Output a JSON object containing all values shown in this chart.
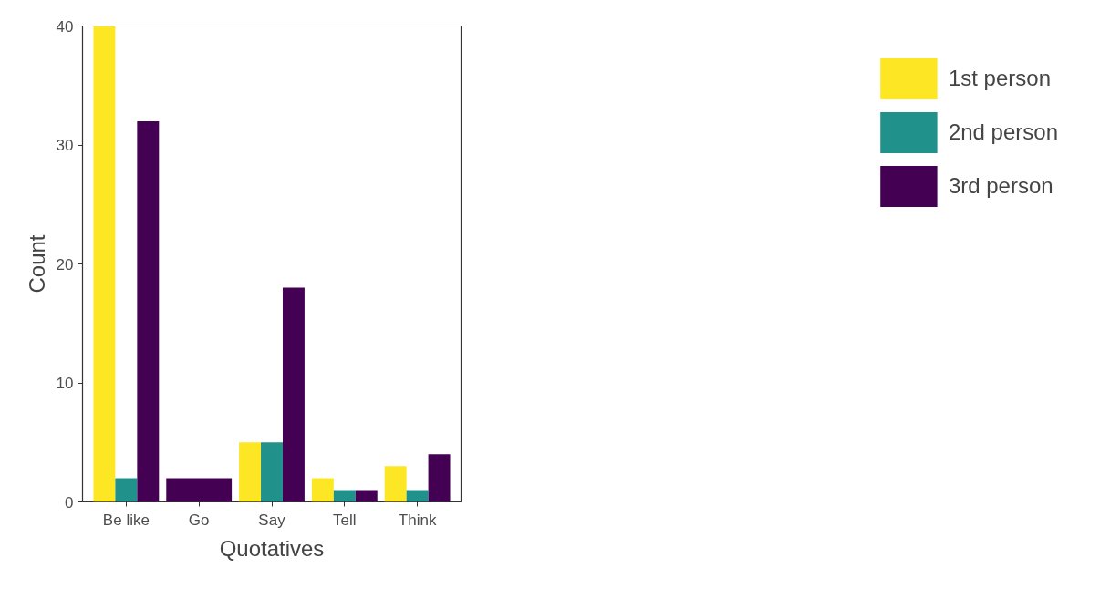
{
  "chart_data": {
    "type": "bar",
    "xlabel": "Quotatives",
    "ylabel": "Count",
    "categories": [
      "Be like",
      "Go",
      "Say",
      "Tell",
      "Think"
    ],
    "series": [
      {
        "name": "1st person",
        "color": "#fde725",
        "values": [
          40,
          null,
          5,
          2,
          3
        ]
      },
      {
        "name": "2nd person",
        "color": "#21918c",
        "values": [
          2,
          null,
          5,
          1,
          1
        ]
      },
      {
        "name": "3rd person",
        "color": "#440154",
        "values": [
          32,
          2,
          18,
          1,
          4
        ]
      }
    ],
    "ylim": [
      0,
      40
    ],
    "yticks": [
      0,
      10,
      20,
      30,
      40
    ],
    "grid": false,
    "legend": "right"
  }
}
